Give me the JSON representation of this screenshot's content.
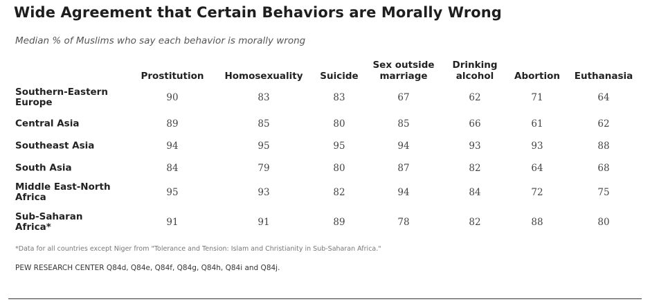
{
  "chart_data": {
    "type": "table",
    "title": "Wide Agreement that Certain Behaviors are Morally Wrong",
    "subtitle": "Median % of Muslims who say each behavior is morally wrong",
    "columns": [
      "Prostitution",
      "Homosexuality",
      "Suicide",
      "Sex outside\nmarriage",
      "Drinking\nalcohol",
      "Abortion",
      "Euthanasia"
    ],
    "rows": [
      {
        "label": "Southern-Eastern\nEurope",
        "values": [
          90,
          83,
          83,
          67,
          62,
          71,
          64
        ]
      },
      {
        "label": "Central Asia",
        "values": [
          89,
          85,
          80,
          85,
          66,
          61,
          62
        ]
      },
      {
        "label": "Southeast Asia",
        "values": [
          94,
          95,
          95,
          94,
          93,
          93,
          88
        ]
      },
      {
        "label": "South Asia",
        "values": [
          84,
          79,
          80,
          87,
          82,
          64,
          68
        ]
      },
      {
        "label": "Middle East-North\nAfrica",
        "values": [
          95,
          93,
          82,
          94,
          84,
          72,
          75
        ]
      },
      {
        "label": "Sub-Saharan\nAfrica*",
        "values": [
          91,
          91,
          89,
          78,
          82,
          88,
          80
        ]
      }
    ],
    "footnote": "*Data for all countries except Niger from \"Tolerance and Tension: Islam and Christianity in Sub-Saharan Africa.\"",
    "source": "PEW RESEARCH CENTER Q84d, Q84e, Q84f, Q84g, Q84h, Q84i and Q84j."
  }
}
